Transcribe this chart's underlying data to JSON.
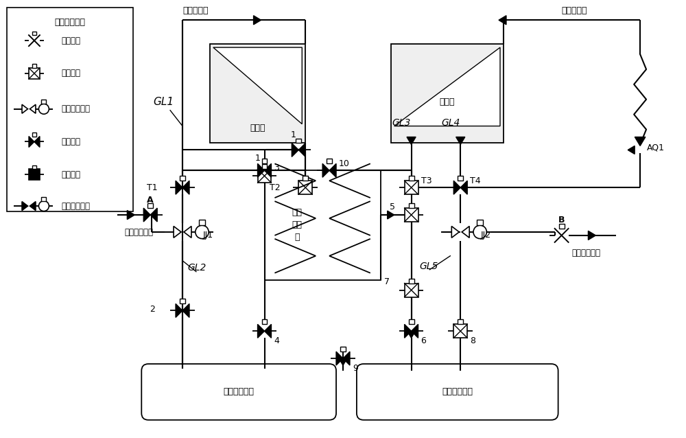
{
  "bg_color": "#ffffff",
  "legend_title": "阀门状态说明",
  "legend_items": [
    {
      "symbol": "open_gate",
      "text": "截止阀开"
    },
    {
      "symbol": "open_control",
      "text": "调节阀开"
    },
    {
      "symbol": "open_reducer",
      "text": "减温减压器开"
    },
    {
      "symbol": "closed_gate",
      "text": "截止阀关"
    },
    {
      "symbol": "closed_control",
      "text": "调节阀关"
    },
    {
      "symbol": "closed_reducer",
      "text": "减温减压器关"
    }
  ],
  "main_steam": "主汽蒸汽来",
  "reheat_steam": "热再蒸汽来",
  "water_left": "再热减温水来",
  "water_right": "再热减温水来",
  "hp_tank": "高压缸",
  "mp_tank": "中压缸",
  "hx_label": "汽汽\n换热\n器",
  "hp_box": "高压供热联箱",
  "mp_box": "中压供热联箱",
  "GL1": "GL1",
  "GL2": "GL2",
  "GL3": "GL3",
  "GL4": "GL4",
  "GL5": "GL5",
  "T1": "T1",
  "T2": "T2",
  "T3": "T3",
  "T4": "T4",
  "JJ1": "JJ1",
  "JJ2": "JJ2",
  "AQ1": "AQ1",
  "A": "A",
  "B": "B",
  "n1": "1",
  "n2": "2",
  "n3": "3",
  "n4": "4",
  "n5": "5",
  "n6": "6",
  "n7": "7",
  "n8": "8",
  "n9": "9",
  "n10": "10"
}
